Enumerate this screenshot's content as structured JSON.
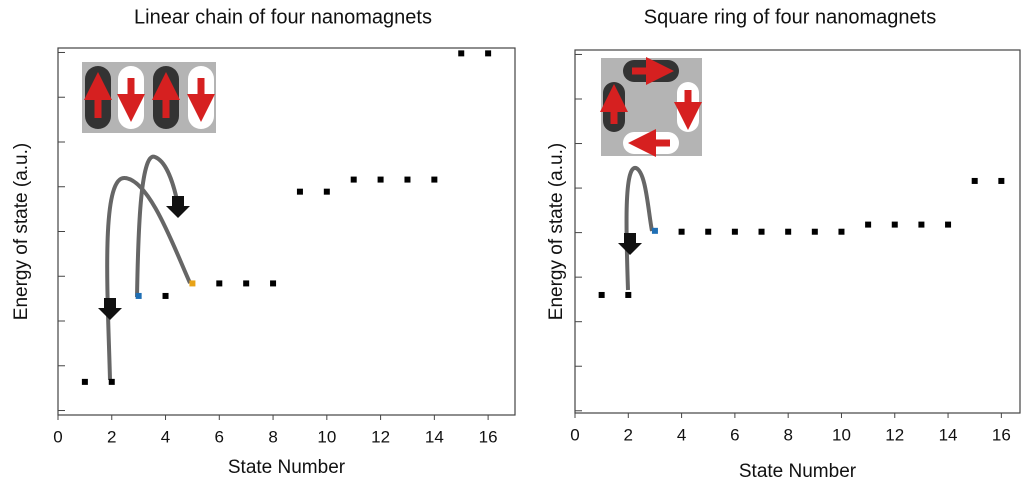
{
  "chart_data": [
    {
      "type": "scatter",
      "title": "Linear chain of four nanomagnets",
      "xlabel": "State Number",
      "ylabel": "Energy of state (a.u.)",
      "x": [
        1,
        2,
        3,
        4,
        5,
        6,
        7,
        8,
        9,
        10,
        11,
        12,
        13,
        14,
        15,
        16
      ],
      "values": [
        0.64,
        0.64,
        2.56,
        2.56,
        2.84,
        2.84,
        2.84,
        2.84,
        4.89,
        4.89,
        5.16,
        5.16,
        5.16,
        5.16,
        7.98,
        7.98
      ],
      "colors": [
        "#000000",
        "#000000",
        "#1f6fb5",
        "#000000",
        "#e8a317",
        "#000000",
        "#000000",
        "#000000",
        "#000000",
        "#000000",
        "#000000",
        "#000000",
        "#000000",
        "#000000",
        "#000000",
        "#000000"
      ],
      "xlim": [
        0,
        17
      ],
      "xticks": [
        0,
        2,
        4,
        6,
        8,
        10,
        12,
        14,
        16
      ],
      "ylim": [
        -0.1,
        8.1
      ],
      "yticks": [
        0,
        1,
        2,
        3,
        4,
        5,
        6,
        7,
        8
      ],
      "ytick_labels": false
    },
    {
      "type": "scatter",
      "title": "Square ring of four nanomagnets",
      "xlabel": "State Number",
      "ylabel": "Energy of state (a.u.)",
      "x": [
        1,
        2,
        3,
        4,
        5,
        6,
        7,
        8,
        9,
        10,
        11,
        12,
        13,
        14,
        15,
        16
      ],
      "values": [
        2.6,
        2.6,
        4.04,
        4.02,
        4.02,
        4.02,
        4.02,
        4.02,
        4.02,
        4.02,
        4.18,
        4.18,
        4.18,
        4.18,
        5.16,
        5.16
      ],
      "colors": [
        "#000000",
        "#000000",
        "#1f6fb5",
        "#000000",
        "#000000",
        "#000000",
        "#000000",
        "#000000",
        "#000000",
        "#000000",
        "#000000",
        "#000000",
        "#000000",
        "#000000",
        "#000000",
        "#000000"
      ],
      "xlim": [
        0,
        16.7
      ],
      "xticks": [
        0,
        2,
        4,
        6,
        8,
        10,
        12,
        14,
        16
      ],
      "ylim": [
        -0.05,
        8.1
      ],
      "yticks": [
        0,
        1,
        2,
        3,
        4,
        5,
        6,
        7,
        8
      ],
      "ytick_labels": false
    }
  ]
}
